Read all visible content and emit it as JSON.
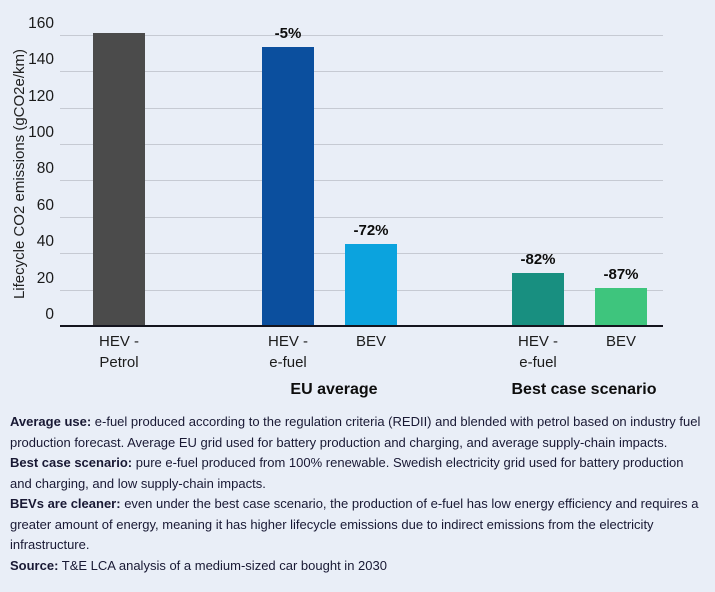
{
  "chart_data": {
    "type": "bar",
    "title": "",
    "xlabel": "",
    "ylabel": "Lifecycle CO2 emissions (gCO2e/km)",
    "ylim": [
      0,
      160
    ],
    "ytick_step": 20,
    "grid": true,
    "legend": "none",
    "bars": [
      {
        "label_lines": [
          "HEV -",
          "Petrol"
        ],
        "value": 161,
        "pct_label": "",
        "color": "#4b4b4b",
        "x_center": 119
      },
      {
        "label_lines": [
          "HEV -",
          "e-fuel"
        ],
        "value": 153,
        "pct_label": "-5%",
        "color": "#0b4f9e",
        "x_center": 288
      },
      {
        "label_lines": [
          "BEV"
        ],
        "value": 45,
        "pct_label": "-72%",
        "color": "#0ba3de",
        "x_center": 371
      },
      {
        "label_lines": [
          "HEV -",
          "e-fuel"
        ],
        "value": 29,
        "pct_label": "-82%",
        "color": "#188f80",
        "x_center": 538
      },
      {
        "label_lines": [
          "BEV"
        ],
        "value": 21,
        "pct_label": "-87%",
        "color": "#3ec57d",
        "x_center": 621
      }
    ],
    "groups": [
      {
        "label": "EU average",
        "x_center": 334
      },
      {
        "label": "Best case scenario",
        "x_center": 584
      }
    ]
  },
  "notes": [
    {
      "bold": "Average use:",
      "text": " e-fuel produced according to the regulation criteria (REDII) and blended with petrol based on industry fuel production forecast. Average EU grid used for battery production and charging, and average supply-chain impacts."
    },
    {
      "bold": "Best case scenario:",
      "text": " pure e-fuel produced from 100% renewable. Swedish electricity grid used for battery production and charging, and low supply-chain impacts."
    },
    {
      "bold": "BEVs are cleaner:",
      "text": " even under the best case scenario, the production of e-fuel has low energy efficiency and requires a greater amount of energy, meaning it has higher lifecycle emissions due to indirect emissions from the electricity infrastructure."
    },
    {
      "bold": "Source:",
      "text": " T&E LCA analysis of a medium-sized car bought in 2030"
    }
  ],
  "colors": {
    "background": "#e9eef7",
    "gridline": "#c6cad3",
    "axis": "#14141e",
    "text": "#1a1a1a",
    "notes_text": "#191934"
  }
}
